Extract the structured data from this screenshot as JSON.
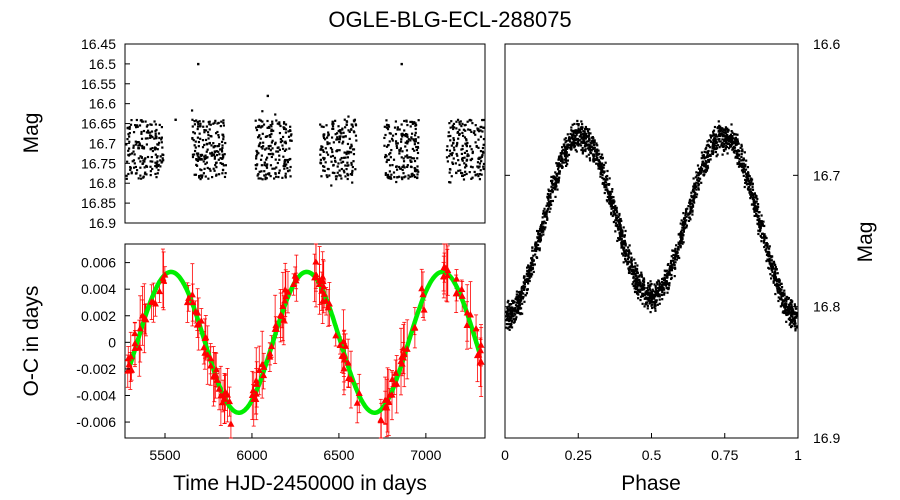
{
  "title": "OGLE-BLG-ECL-288075",
  "colors": {
    "points": "#000000",
    "oc_points": "#ff0000",
    "fit": "#00ee00",
    "frame": "#000000"
  },
  "chart_data": [
    {
      "id": "light-curve",
      "type": "scatter",
      "xlabel": "",
      "ylabel": "Mag",
      "xlim": [
        5270,
        7340
      ],
      "ylim": [
        16.45,
        16.9
      ],
      "y_inverted": true,
      "y_ticks": [
        16.45,
        16.5,
        16.55,
        16.6,
        16.65,
        16.7,
        16.75,
        16.8,
        16.85,
        16.9
      ],
      "y_tick_labels": [
        "16.45",
        "16.5",
        "16.55",
        "16.6",
        "16.65",
        "16.7",
        "16.75",
        "16.8",
        "16.85",
        "16.9"
      ],
      "season_ranges": [
        [
          5270,
          5490
        ],
        [
          5655,
          5850
        ],
        [
          6020,
          6230
        ],
        [
          6390,
          6600
        ],
        [
          6760,
          6960
        ],
        [
          7120,
          7340
        ]
      ],
      "mag_range_per_season": [
        16.64,
        16.79
      ],
      "outliers": [
        {
          "x": 5690,
          "y": 16.5
        },
        {
          "x": 6860,
          "y": 16.5
        },
        {
          "x": 6090,
          "y": 16.58
        },
        {
          "x": 5560,
          "y": 16.64
        },
        {
          "x": 7330,
          "y": 16.66
        }
      ]
    },
    {
      "id": "o-c-diagram",
      "type": "scatter",
      "xlabel": "Time HJD-2450000 in days",
      "ylabel": "O-C in days",
      "xlim": [
        5270,
        7340
      ],
      "ylim": [
        -0.0072,
        0.0074
      ],
      "x_ticks": [
        5500,
        6000,
        6500,
        7000
      ],
      "x_tick_labels": [
        "5500",
        "6000",
        "6500",
        "7000"
      ],
      "y_ticks": [
        -0.006,
        -0.004,
        -0.002,
        0,
        0.002,
        0.004,
        0.006
      ],
      "y_tick_labels": [
        "-0.006",
        "-0.004",
        "-0.002",
        "0",
        "0.002",
        "0.004",
        "0.006"
      ],
      "fit": {
        "type": "sinusoid",
        "amplitude": 0.0053,
        "period": 780,
        "phase_max_x": 5535,
        "x_range": [
          5300,
          7310
        ]
      },
      "points_description": "O-C timing residuals with error bars scattered around the sinusoidal fit"
    },
    {
      "id": "phased-light-curve",
      "type": "scatter",
      "xlabel": "Phase",
      "ylabel": "Mag",
      "xlim": [
        0,
        1
      ],
      "ylim": [
        16.6,
        16.9
      ],
      "y_inverted": true,
      "x_ticks": [
        0,
        0.25,
        0.5,
        0.75,
        1
      ],
      "x_tick_labels": [
        "0",
        "0.25",
        "0.5",
        "0.75",
        "1"
      ],
      "y_ticks": [
        16.6,
        16.7,
        16.8,
        16.9
      ],
      "y_tick_labels": [
        "16.6",
        "16.7",
        "16.8",
        "16.9"
      ],
      "model": {
        "mean_mag": 16.735,
        "half_amplitude": 0.065,
        "maxima_phases": [
          0.25,
          0.75
        ],
        "minima_phases": [
          0,
          0.5
        ]
      }
    }
  ]
}
